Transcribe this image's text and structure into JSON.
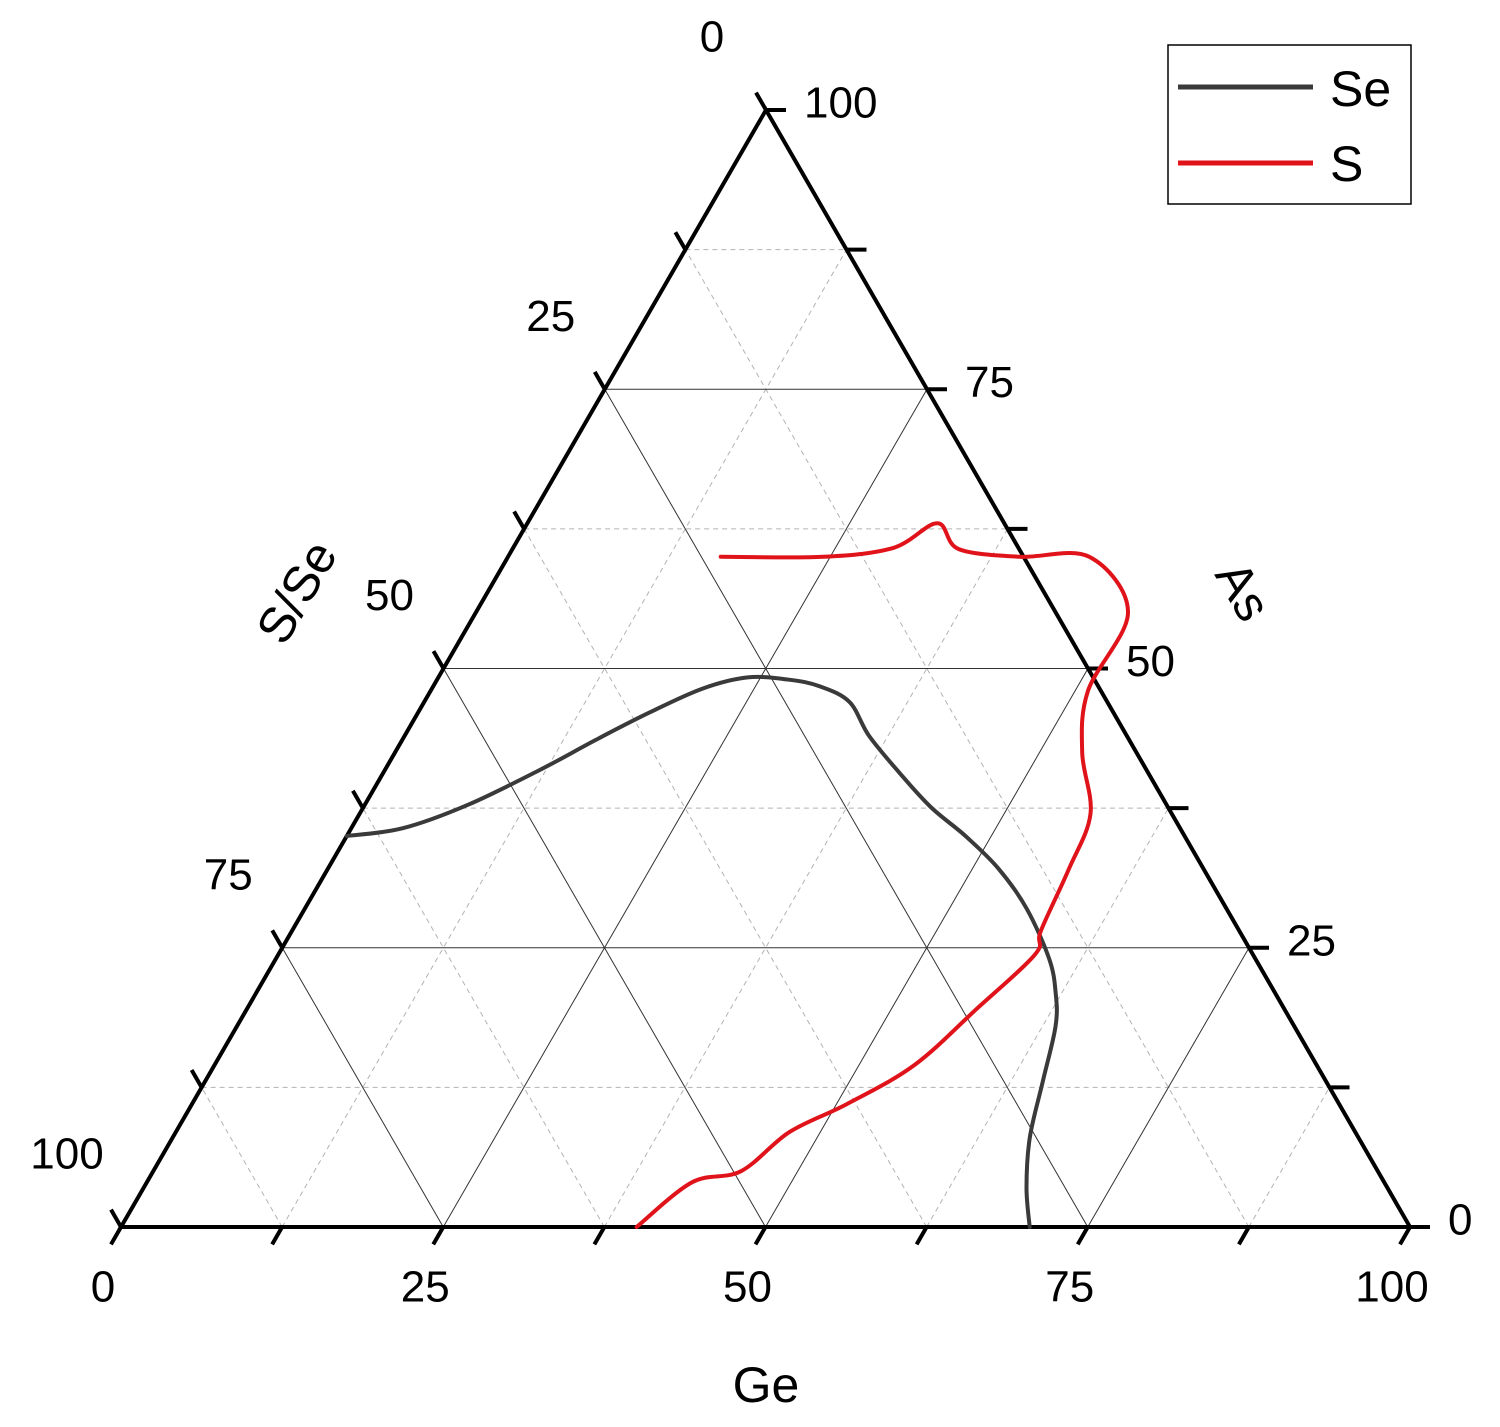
{
  "chart_data": {
    "type": "ternary-line",
    "axes": {
      "bottom": {
        "title": "Ge",
        "ticks": [
          "0",
          "25",
          "50",
          "75",
          "100"
        ]
      },
      "left": {
        "title": "S/Se",
        "ticks": [
          "0",
          "25",
          "50",
          "75",
          "100"
        ]
      },
      "right": {
        "title": "As",
        "ticks": [
          "0",
          "25",
          "50",
          "75",
          "100"
        ]
      }
    },
    "range": [
      0,
      100
    ],
    "major_step": 25,
    "minor_step": 12.5,
    "grid": true,
    "legend_position": "top-right",
    "series": [
      {
        "name": "Se",
        "color": "#3a3a3a",
        "points": [
          {
            "ge": 0.0,
            "as": 35.0,
            "ss": 65.0
          },
          {
            "ge": 4.0,
            "as": 35.7,
            "ss": 60.3
          },
          {
            "ge": 8.0,
            "as": 37.8,
            "ss": 54.2
          },
          {
            "ge": 12.0,
            "as": 40.9,
            "ss": 47.1
          },
          {
            "ge": 15.0,
            "as": 43.6,
            "ss": 41.4
          },
          {
            "ge": 18.0,
            "as": 46.1,
            "ss": 35.9
          },
          {
            "ge": 21.0,
            "as": 48.2,
            "ss": 30.8
          },
          {
            "ge": 24.0,
            "as": 49.2,
            "ss": 26.8
          },
          {
            "ge": 27.3,
            "as": 49.0,
            "ss": 23.7
          },
          {
            "ge": 30.0,
            "as": 48.4,
            "ss": 21.6
          },
          {
            "ge": 33.0,
            "as": 47.0,
            "ss": 20.0
          },
          {
            "ge": 36.0,
            "as": 44.0,
            "ss": 20.0
          },
          {
            "ge": 40.0,
            "as": 40.7,
            "ss": 19.3
          },
          {
            "ge": 44.0,
            "as": 37.6,
            "ss": 18.4
          },
          {
            "ge": 48.0,
            "as": 35.0,
            "ss": 17.0
          },
          {
            "ge": 52.0,
            "as": 32.1,
            "ss": 15.9
          },
          {
            "ge": 56.0,
            "as": 28.5,
            "ss": 15.5
          },
          {
            "ge": 60.0,
            "as": 24.0,
            "ss": 16.0
          },
          {
            "ge": 62.0,
            "as": 21.0,
            "ss": 17.0
          },
          {
            "ge": 63.5,
            "as": 18.0,
            "ss": 18.5
          },
          {
            "ge": 65.0,
            "as": 13.0,
            "ss": 22.0
          },
          {
            "ge": 66.5,
            "as": 8.0,
            "ss": 25.5
          },
          {
            "ge": 68.5,
            "as": 3.5,
            "ss": 28.0
          },
          {
            "ge": 70.5,
            "as": 0.0,
            "ss": 29.5
          }
        ]
      },
      {
        "name": "S",
        "color": "#e0131a",
        "points": [
          {
            "ge": 16.5,
            "as": 60.0,
            "ss": 23.5
          },
          {
            "ge": 24.5,
            "as": 60.0,
            "ss": 15.5
          },
          {
            "ge": 29.5,
            "as": 60.8,
            "ss": 9.7
          },
          {
            "ge": 31.8,
            "as": 63.0,
            "ss": 5.2
          },
          {
            "ge": 34.6,
            "as": 60.7,
            "ss": 4.7
          },
          {
            "ge": 39.7,
            "as": 60.0,
            "ss": 0.3
          },
          {
            "ge": 45.1,
            "as": 60.0,
            "ss": -5.1
          },
          {
            "ge": 50.6,
            "as": 55.0,
            "ss": -5.6
          },
          {
            "ge": 51.0,
            "as": 48.0,
            "ss": 1.0
          },
          {
            "ge": 53.3,
            "as": 42.5,
            "ss": 4.2
          },
          {
            "ge": 56.7,
            "as": 37.0,
            "ss": 6.3
          },
          {
            "ge": 57.5,
            "as": 32.0,
            "ss": 10.5
          },
          {
            "ge": 58.1,
            "as": 26.5,
            "ss": 15.4
          },
          {
            "ge": 58.7,
            "as": 24.4,
            "ss": 16.9
          },
          {
            "ge": 56.6,
            "as": 19.5,
            "ss": 23.9
          },
          {
            "ge": 54.3,
            "as": 14.5,
            "ss": 31.2
          },
          {
            "ge": 50.8,
            "as": 11.0,
            "ss": 38.2
          },
          {
            "ge": 47.6,
            "as": 8.5,
            "ss": 43.9
          },
          {
            "ge": 45.6,
            "as": 5.0,
            "ss": 49.4
          },
          {
            "ge": 42.3,
            "as": 4.0,
            "ss": 53.7
          },
          {
            "ge": 40.0,
            "as": 0.0,
            "ss": 60.0
          }
        ]
      }
    ]
  }
}
